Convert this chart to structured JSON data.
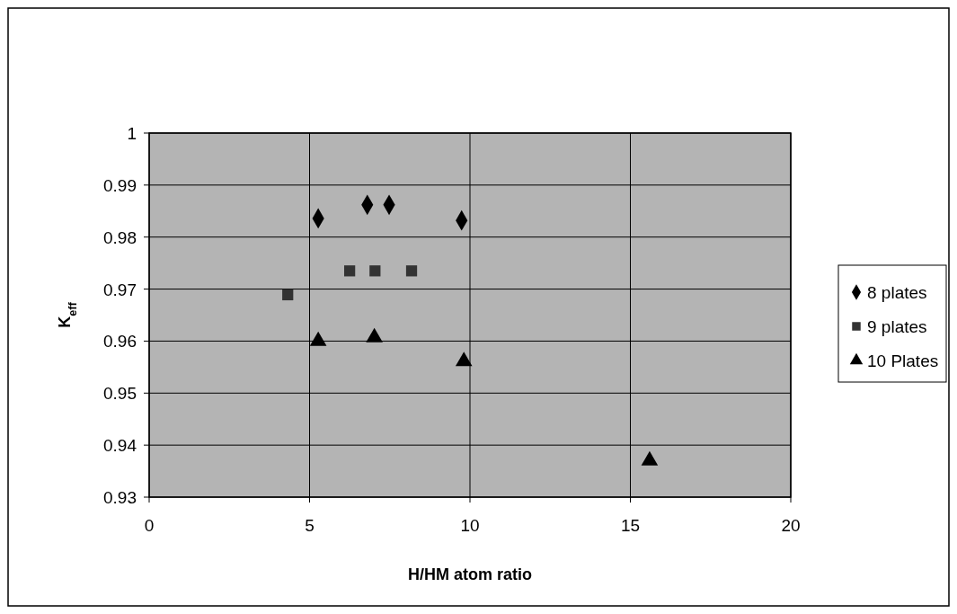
{
  "chart_data": {
    "type": "scatter",
    "xlabel": "H/HM atom ratio",
    "ylabel": "K$_{eff}$",
    "xlim": [
      0,
      20
    ],
    "xticks": [
      0,
      5,
      10,
      15,
      20
    ],
    "ylim": [
      0.93,
      1
    ],
    "yticks": [
      0.93,
      0.94,
      0.95,
      0.96,
      0.97,
      0.98,
      0.99,
      1
    ],
    "grid": true,
    "legend": "right",
    "series": [
      {
        "name": "8 plates",
        "color": "#000000",
        "marker": "diamond",
        "x": [
          5.27,
          6.8,
          7.48,
          9.74
        ],
        "values": [
          0.9836,
          0.9862,
          0.9862,
          0.9832
        ]
      },
      {
        "name": "9 plates",
        "color": "#333333",
        "marker": "square",
        "x": [
          4.32,
          6.25,
          7.04,
          8.18
        ],
        "values": [
          0.9689,
          0.9735,
          0.9735,
          0.9735
        ]
      },
      {
        "name": "10 Plates",
        "color": "#000000",
        "marker": "triangle",
        "x": [
          5.27,
          7.02,
          9.81,
          15.6
        ],
        "values": [
          0.96,
          0.9607,
          0.9561,
          0.937
        ]
      }
    ]
  }
}
